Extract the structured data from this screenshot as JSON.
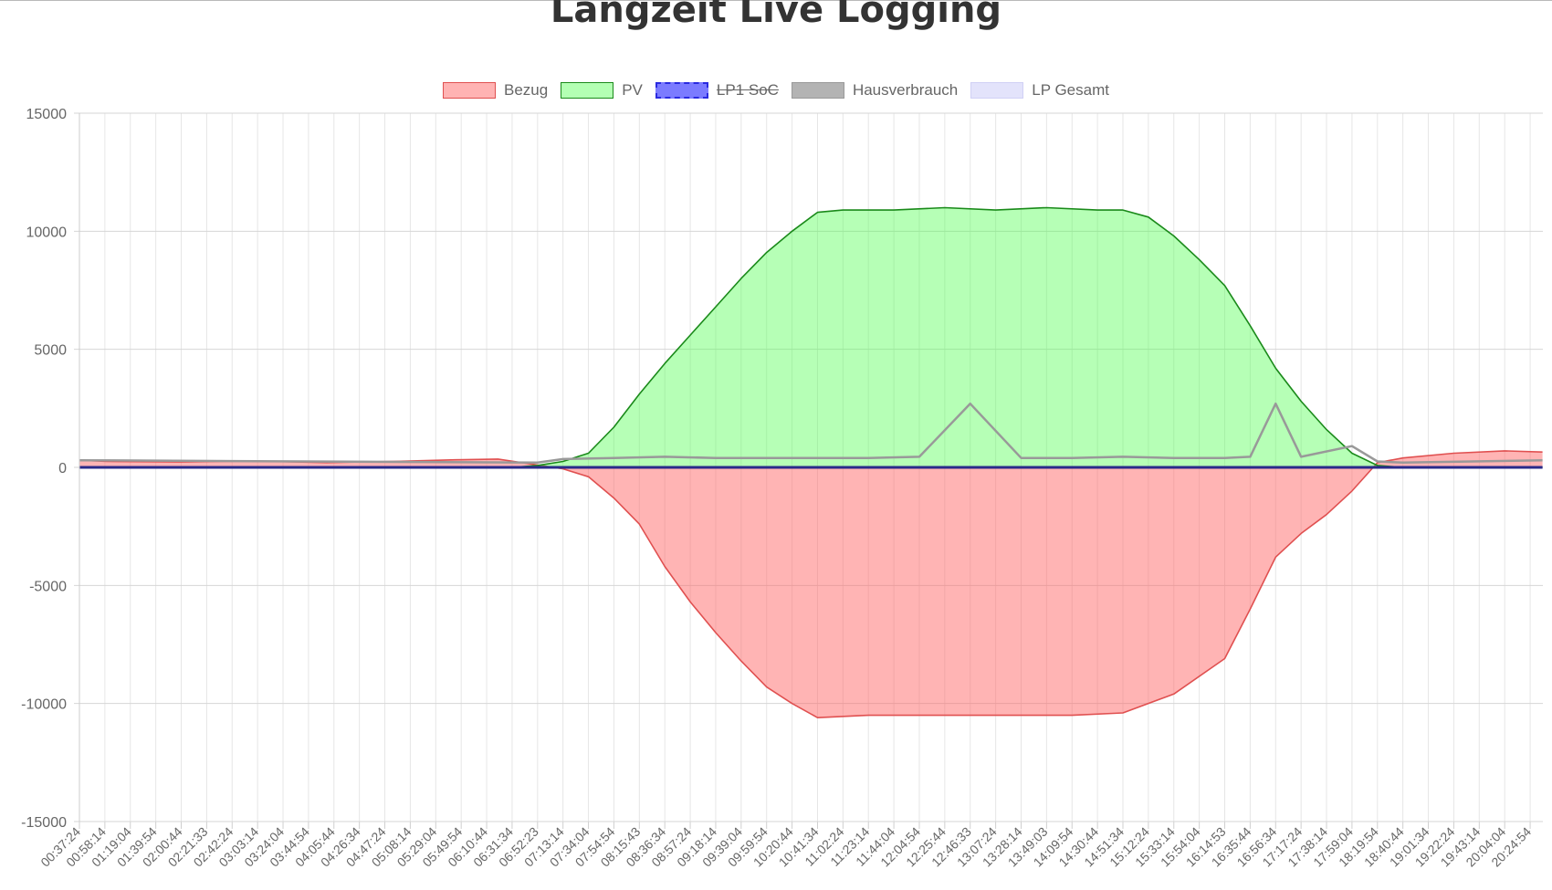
{
  "title": "Langzeit Live Logging",
  "legend": [
    {
      "label": "Bezug",
      "fill": "#ffb3b3",
      "stroke": "#e05050",
      "hidden": false
    },
    {
      "label": "PV",
      "fill": "#b3ffb3",
      "stroke": "#1a8a1a",
      "hidden": false
    },
    {
      "label": "LP1 SoC",
      "fill": "#7b7bff",
      "stroke": "#2a2ae0",
      "hidden": true
    },
    {
      "label": "Hausverbrauch",
      "fill": "#b3b3b3",
      "stroke": "#999999",
      "hidden": false
    },
    {
      "label": "LP Gesamt",
      "fill": "#e3e3fb",
      "stroke": "#d0d0f5",
      "hidden": false
    }
  ],
  "chart_data": {
    "type": "area",
    "title": "Langzeit Live Logging",
    "ylim": [
      -15000,
      15000
    ],
    "yticks": [
      "15000",
      "10000",
      "5000",
      "0",
      "-5000",
      "-10000",
      "-15000"
    ],
    "x_tick_labels": [
      "00:37:24",
      "00:58:14",
      "01:19:04",
      "01:39:54",
      "02:00:44",
      "02:21:33",
      "02:42:24",
      "03:03:14",
      "03:24:04",
      "03:44:54",
      "04:05:44",
      "04:26:34",
      "04:47:24",
      "05:08:14",
      "05:29:04",
      "05:49:54",
      "06:10:44",
      "06:31:34",
      "06:52:23",
      "07:13:14",
      "07:34:04",
      "07:54:54",
      "08:15:43",
      "08:36:34",
      "08:57:24",
      "09:18:14",
      "09:39:04",
      "09:59:54",
      "10:20:44",
      "10:41:34",
      "11:02:24",
      "11:23:14",
      "11:44:04",
      "12:04:54",
      "12:25:44",
      "12:46:33",
      "13:07:24",
      "13:28:14",
      "13:49:03",
      "14:09:54",
      "14:30:44",
      "14:51:34",
      "15:12:24",
      "15:33:14",
      "15:54:04",
      "16:14:53",
      "16:35:44",
      "16:56:34",
      "17:17:24",
      "17:38:14",
      "17:59:04",
      "18:19:54",
      "18:40:44",
      "19:01:34",
      "19:22:24",
      "19:43:14",
      "20:04:04",
      "20:24:54"
    ],
    "grid": true,
    "legend_position": "top",
    "series": [
      {
        "name": "Bezug",
        "color": "#e05050",
        "x": [
          "00:37:24",
          "01:00:00",
          "02:00:00",
          "03:00:00",
          "04:00:00",
          "05:00:00",
          "05:45:00",
          "06:20:00",
          "06:52:23",
          "07:13:14",
          "07:34:04",
          "07:54:54",
          "08:15:43",
          "08:36:34",
          "08:57:24",
          "09:18:14",
          "09:39:04",
          "09:59:54",
          "10:20:44",
          "10:41:34",
          "11:23:14",
          "12:04:54",
          "12:46:33",
          "13:28:14",
          "14:09:54",
          "14:51:34",
          "15:33:14",
          "16:14:53",
          "16:35:44",
          "16:56:34",
          "17:17:24",
          "17:38:14",
          "17:59:04",
          "18:19:54",
          "18:40:44",
          "19:22:24",
          "20:04:04",
          "20:35:00"
        ],
        "y": [
          300,
          250,
          230,
          270,
          200,
          260,
          320,
          350,
          100,
          -60,
          -400,
          -1300,
          -2400,
          -4200,
          -5700,
          -7000,
          -8200,
          -9300,
          -10000,
          -10600,
          -10500,
          -10500,
          -10500,
          -10500,
          -10500,
          -10400,
          -9600,
          -8100,
          -6000,
          -3800,
          -2800,
          -2000,
          -1000,
          200,
          400,
          600,
          700,
          650
        ]
      },
      {
        "name": "PV",
        "color": "#1a8a1a",
        "x": [
          "00:37:24",
          "06:31:34",
          "06:52:23",
          "07:13:14",
          "07:34:04",
          "07:54:54",
          "08:15:43",
          "08:36:34",
          "08:57:24",
          "09:18:14",
          "09:39:04",
          "09:59:54",
          "10:20:44",
          "10:41:34",
          "11:02:24",
          "11:44:04",
          "12:25:44",
          "13:07:24",
          "13:49:03",
          "14:30:44",
          "14:51:34",
          "15:12:24",
          "15:33:14",
          "15:54:04",
          "16:14:53",
          "16:35:44",
          "16:56:34",
          "17:17:24",
          "17:38:14",
          "17:59:04",
          "18:19:54",
          "18:40:44",
          "20:35:00"
        ],
        "y": [
          0,
          0,
          80,
          250,
          600,
          1700,
          3100,
          4400,
          5600,
          6800,
          8000,
          9100,
          10000,
          10800,
          10900,
          10900,
          11000,
          10900,
          11000,
          10900,
          10900,
          10600,
          9800,
          8800,
          7700,
          6000,
          4200,
          2800,
          1600,
          600,
          80,
          0,
          0
        ]
      },
      {
        "name": "Hausverbrauch",
        "color": "#999999",
        "x": [
          "00:37:24",
          "06:52:23",
          "07:13:14",
          "07:54:54",
          "08:36:34",
          "09:18:14",
          "09:59:54",
          "10:41:34",
          "11:23:14",
          "12:04:54",
          "12:46:33",
          "13:28:14",
          "14:09:54",
          "14:51:34",
          "15:33:14",
          "16:14:53",
          "16:35:44",
          "16:56:34",
          "17:17:24",
          "17:59:04",
          "18:19:54",
          "18:40:44",
          "20:35:00"
        ],
        "y": [
          300,
          200,
          350,
          400,
          450,
          400,
          400,
          400,
          400,
          450,
          2700,
          400,
          400,
          450,
          400,
          400,
          450,
          2700,
          450,
          900,
          250,
          200,
          300
        ]
      },
      {
        "name": "LP Gesamt",
        "color": "#2a2a8a",
        "x": [
          "00:37:24",
          "20:35:00"
        ],
        "y": [
          0,
          0
        ]
      }
    ]
  }
}
